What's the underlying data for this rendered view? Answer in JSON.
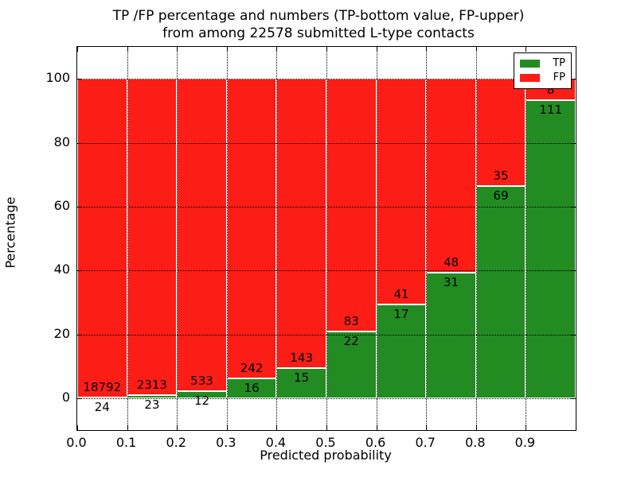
{
  "chart_data": {
    "type": "bar",
    "stacked": true,
    "title_lines": [
      "TP /FP percentage and numbers (TP-bottom value, FP-upper)",
      "from among 22578 submitted L-type contacts"
    ],
    "total_contacts": 22578,
    "xlabel": "Predicted probability",
    "ylabel": "Percentage",
    "categories": [
      "0.0-0.1",
      "0.1-0.2",
      "0.2-0.3",
      "0.3-0.4",
      "0.4-0.5",
      "0.5-0.6",
      "0.6-0.7",
      "0.7-0.8",
      "0.8-0.9",
      "0.9-1.0"
    ],
    "bin_width": 0.1,
    "series": [
      {
        "name": "TP",
        "color": "#228b22",
        "counts": [
          24,
          23,
          12,
          16,
          15,
          22,
          17,
          31,
          69,
          111
        ],
        "percentages": [
          0.13,
          0.98,
          2.2,
          6.2,
          9.49,
          20.95,
          29.31,
          39.24,
          66.35,
          93.28
        ]
      },
      {
        "name": "FP",
        "color": "#fc1d17",
        "counts": [
          18792,
          2313,
          533,
          242,
          143,
          83,
          41,
          48,
          35,
          8
        ],
        "percentages": [
          99.87,
          99.02,
          97.8,
          93.8,
          90.51,
          79.05,
          70.69,
          60.76,
          33.65,
          6.72
        ]
      }
    ],
    "xticks": [
      "0.0",
      "0.1",
      "0.2",
      "0.3",
      "0.4",
      "0.5",
      "0.6",
      "0.7",
      "0.8",
      "0.9"
    ],
    "yticks": [
      0,
      20,
      40,
      60,
      80,
      100
    ],
    "xlim": [
      0.0,
      1.0
    ],
    "ylim": [
      -10,
      110
    ],
    "grid": "dotted",
    "legend": {
      "position": "upper right",
      "entries": [
        {
          "label": "TP",
          "color": "#228b22"
        },
        {
          "label": "FP",
          "color": "#fc1d17"
        }
      ]
    }
  }
}
